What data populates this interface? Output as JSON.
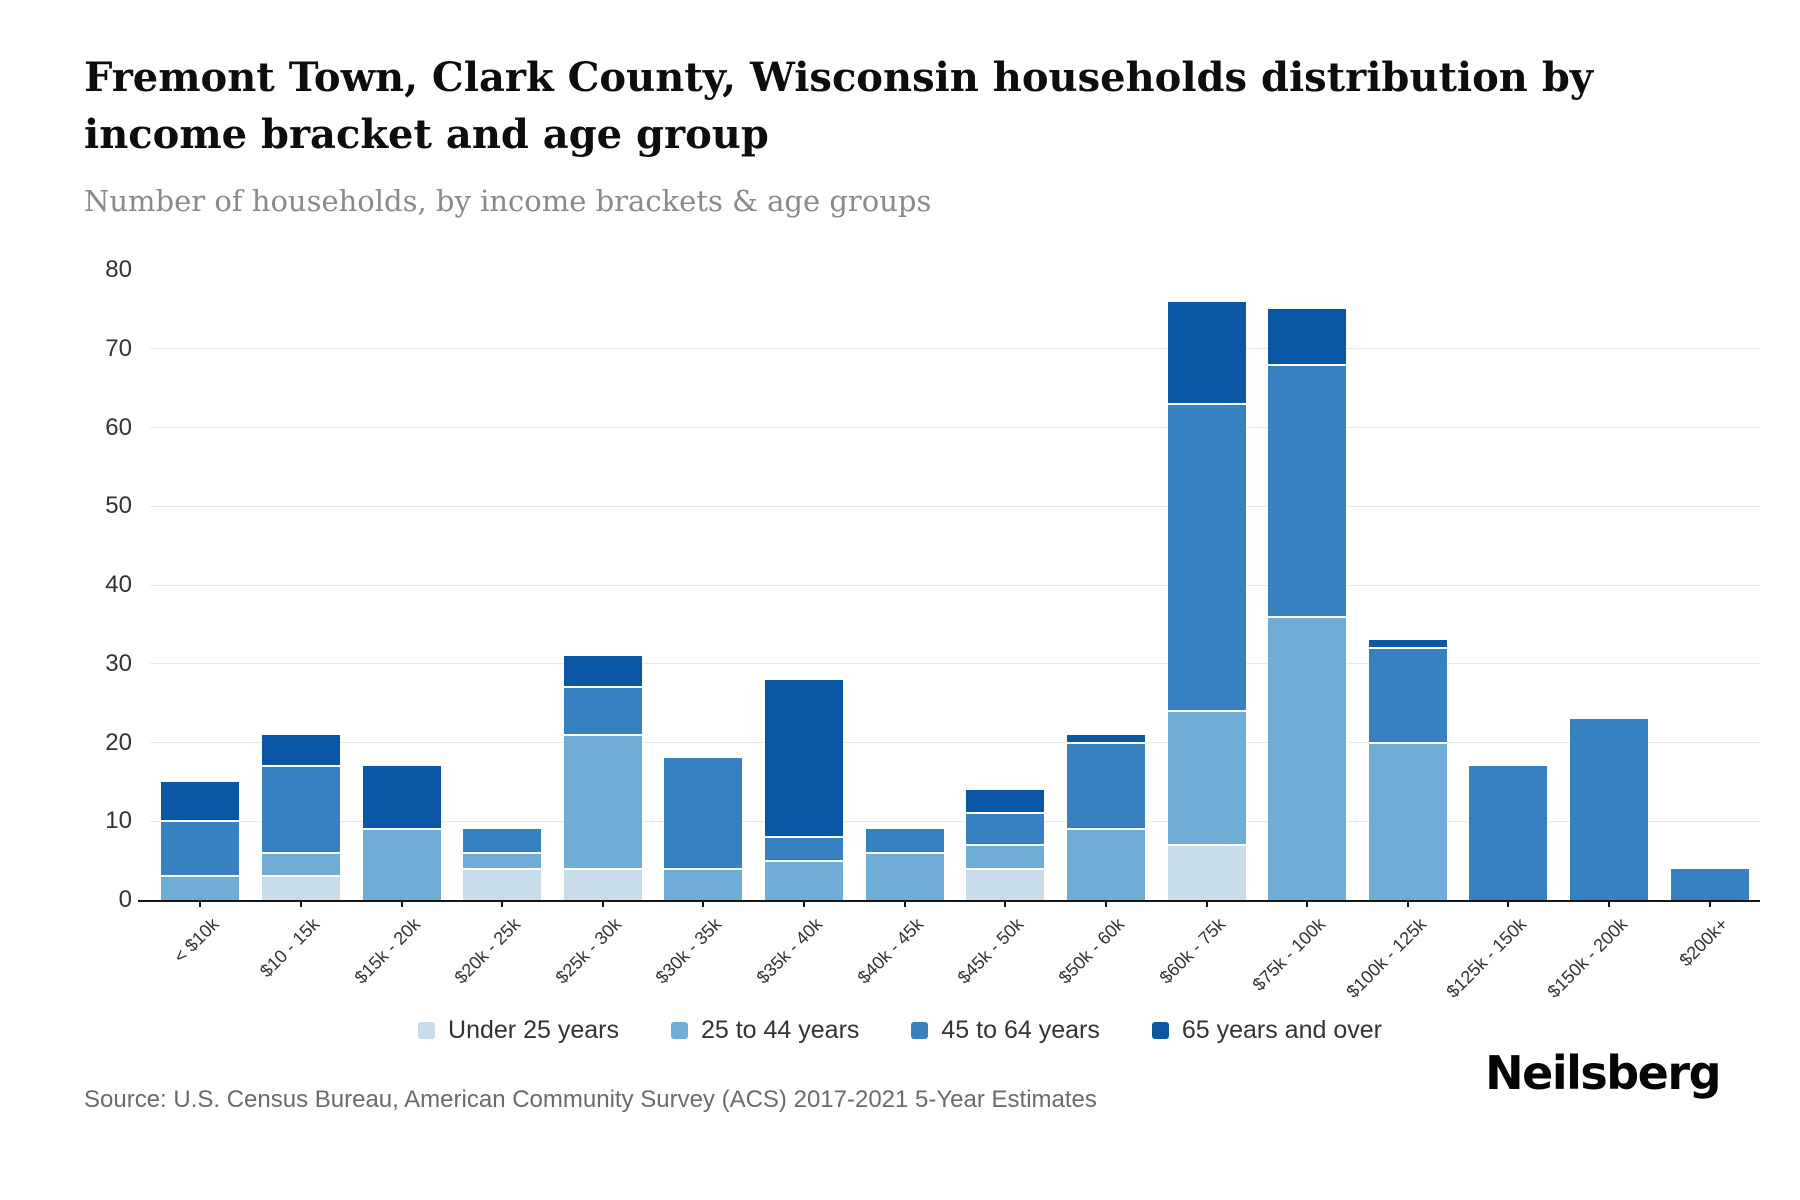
{
  "header": {
    "title": "Fremont Town, Clark County, Wisconsin households distribution by income bracket and age group",
    "subtitle": "Number of households, by income brackets & age groups"
  },
  "chart_data": {
    "type": "bar",
    "stacked": true,
    "categories": [
      "< $10k",
      "$10 - 15k",
      "$15k - 20k",
      "$20k - 25k",
      "$25k - 30k",
      "$30k - 35k",
      "$35k - 40k",
      "$40k - 45k",
      "$45k - 50k",
      "$50k - 60k",
      "$60k - 75k",
      "$75k - 100k",
      "$100k - 125k",
      "$125k - 150k",
      "$150k - 200k",
      "$200k+"
    ],
    "series": [
      {
        "name": "Under 25 years",
        "color": "#c8dcea",
        "values": [
          0,
          3,
          0,
          4,
          4,
          0,
          0,
          0,
          4,
          0,
          7,
          0,
          0,
          0,
          0,
          0
        ]
      },
      {
        "name": "25 to 44 years",
        "color": "#6fadd6",
        "values": [
          3,
          3,
          9,
          2,
          17,
          4,
          5,
          6,
          3,
          9,
          17,
          36,
          20,
          0,
          0,
          0
        ]
      },
      {
        "name": "45 to 64 years",
        "color": "#3781c1",
        "values": [
          7,
          11,
          0,
          3,
          6,
          14,
          3,
          3,
          4,
          11,
          39,
          32,
          12,
          17,
          23,
          4
        ]
      },
      {
        "name": "65 years and over",
        "color": "#0b57a5",
        "values": [
          5,
          4,
          8,
          0,
          4,
          0,
          20,
          0,
          3,
          1,
          13,
          7,
          1,
          0,
          0,
          0
        ]
      }
    ],
    "totals": [
      15,
      21,
      17,
      9,
      31,
      18,
      28,
      9,
      14,
      21,
      76,
      75,
      33,
      17,
      23,
      4
    ],
    "ylabel": "",
    "xlabel": "",
    "ylim": [
      0,
      80
    ],
    "yticks": [
      0,
      10,
      20,
      30,
      40,
      50,
      60,
      70,
      80
    ],
    "grid": "horizontal",
    "legend_position": "bottom"
  },
  "footer": {
    "source": "Source: U.S. Census Bureau, American Community Survey (ACS) 2017-2021 5-Year Estimates",
    "logo": "Neilsberg"
  }
}
